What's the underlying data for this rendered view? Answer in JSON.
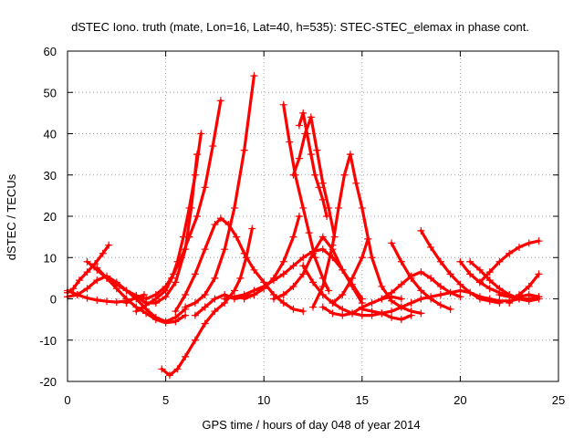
{
  "chart_data": {
    "type": "scatter",
    "title": "dSTEC Iono. truth (mate, Lon=16, Lat=40, h=535): STEC-STEC_elemax in phase cont.",
    "xlabel": "GPS time / hours of day 048 of year 2014",
    "ylabel": "dSTEC  / TECUs",
    "xlim": [
      0,
      25
    ],
    "ylim": [
      -20,
      60
    ],
    "xticks": [
      0,
      5,
      10,
      15,
      20,
      25
    ],
    "yticks": [
      -20,
      -10,
      0,
      10,
      20,
      30,
      40,
      50,
      60
    ],
    "grid": true,
    "marker": "+",
    "color": "#ff0000",
    "series": [
      {
        "x": [
          0.0,
          0.3,
          0.6,
          1.0,
          1.4,
          1.8,
          2.1
        ],
        "y": [
          1.5,
          2.5,
          4.5,
          6.5,
          8.5,
          11.0,
          13.0
        ]
      },
      {
        "x": [
          0.0,
          0.5,
          1.0,
          1.5,
          2.0,
          2.5,
          3.0,
          3.5,
          3.9
        ],
        "y": [
          2.0,
          1.0,
          0.2,
          -0.3,
          -0.6,
          -0.8,
          -0.5,
          0.2,
          1.0
        ]
      },
      {
        "x": [
          1.0,
          1.5,
          2.0,
          2.5,
          3.0,
          3.5,
          4.0
        ],
        "y": [
          9.0,
          7.0,
          5.0,
          3.5,
          2.0,
          0.8,
          0.0
        ]
      },
      {
        "x": [
          0.0,
          0.5,
          1.0,
          1.5,
          2.0,
          2.5,
          3.0,
          3.5,
          4.0,
          4.5,
          5.0,
          5.5,
          6.0
        ],
        "y": [
          0.5,
          1.0,
          2.5,
          4.5,
          5.5,
          4.0,
          2.0,
          0.0,
          -2.5,
          -4.5,
          -5.5,
          -4.5,
          -2.5
        ]
      },
      {
        "x": [
          1.5,
          2.0,
          2.5,
          3.0,
          3.5,
          4.0,
          4.5,
          5.0,
          5.5,
          6.0
        ],
        "y": [
          7.5,
          5.0,
          2.5,
          0.0,
          -2.0,
          -3.5,
          -5.0,
          -5.8,
          -5.5,
          -4.0
        ]
      },
      {
        "x": [
          3.0,
          3.5,
          4.0,
          4.5,
          5.0,
          5.5,
          6.0,
          6.3,
          6.6
        ],
        "y": [
          -1.0,
          0.5,
          -1.0,
          -1.0,
          0.5,
          4.0,
          12.0,
          22.0,
          35.0
        ]
      },
      {
        "x": [
          3.5,
          4.0,
          4.5,
          5.0,
          5.3,
          5.6,
          5.9,
          6.2,
          6.5,
          6.8
        ],
        "y": [
          -3.0,
          -1.5,
          0.0,
          2.0,
          5.0,
          9.0,
          15.0,
          22.0,
          30.0,
          40.0
        ]
      },
      {
        "x": [
          4.0,
          4.5,
          5.0,
          5.4,
          5.8,
          6.2,
          6.6,
          7.0,
          7.4,
          7.8
        ],
        "y": [
          0.0,
          1.0,
          3.0,
          6.0,
          10.0,
          15.0,
          20.0,
          27.0,
          37.0,
          48.0
        ]
      },
      {
        "x": [
          4.8,
          5.2,
          5.6,
          6.0,
          6.5,
          7.0,
          7.5,
          8.0,
          8.5,
          8.8,
          9.1,
          9.4
        ],
        "y": [
          -17.0,
          -18.5,
          -17.0,
          -14.0,
          -10.0,
          -6.0,
          -3.0,
          -1.0,
          2.0,
          5.0,
          10.0,
          17.0
        ]
      },
      {
        "x": [
          5.5,
          6.0,
          6.5,
          7.0,
          7.5,
          7.8,
          8.2,
          8.6,
          9.0,
          9.5,
          10.0,
          10.5,
          11.0,
          11.5,
          12.0
        ],
        "y": [
          -3.0,
          1.0,
          6.0,
          12.0,
          18.0,
          19.5,
          18.0,
          15.0,
          11.0,
          7.0,
          4.0,
          1.0,
          -1.0,
          -2.5,
          -3.0
        ]
      },
      {
        "x": [
          6.0,
          6.5,
          7.0,
          7.5,
          8.0,
          8.5,
          9.0,
          9.5
        ],
        "y": [
          -2.0,
          -1.0,
          1.0,
          5.0,
          12.0,
          22.0,
          36.0,
          54.0
        ]
      },
      {
        "x": [
          6.5,
          7.0,
          7.5,
          8.0,
          8.5,
          9.0,
          9.5
        ],
        "y": [
          -4.0,
          -2.0,
          0.0,
          1.0,
          0.0,
          0.5,
          1.0
        ]
      },
      {
        "x": [
          8.0,
          8.5,
          9.0,
          9.5,
          10.0,
          10.5,
          11.0,
          11.5,
          12.0,
          12.5,
          13.0,
          13.5,
          14.0,
          14.5,
          15.0
        ],
        "y": [
          0.0,
          0.5,
          1.0,
          2.0,
          3.0,
          4.5,
          6.0,
          8.0,
          10.0,
          11.5,
          12.0,
          10.0,
          7.0,
          3.5,
          0.0
        ]
      },
      {
        "x": [
          9.0,
          9.5,
          10.0,
          10.5,
          11.0,
          11.5,
          11.8
        ],
        "y": [
          0.0,
          1.0,
          2.5,
          5.0,
          9.0,
          15.0,
          20.0
        ]
      },
      {
        "x": [
          10.5,
          11.0,
          11.5,
          12.0,
          12.5,
          13.0,
          13.5,
          14.0,
          14.5,
          15.0
        ],
        "y": [
          0.0,
          1.0,
          3.0,
          6.0,
          11.0,
          15.0,
          12.0,
          7.0,
          3.0,
          -1.0
        ]
      },
      {
        "x": [
          11.0,
          11.3,
          11.6,
          12.0,
          12.3,
          12.6,
          13.0,
          13.3
        ],
        "y": [
          47.0,
          38.0,
          30.0,
          22.0,
          16.0,
          10.0,
          5.0,
          2.0
        ]
      },
      {
        "x": [
          11.5,
          11.8,
          12.1,
          12.4,
          12.7,
          13.0,
          13.3,
          13.6
        ],
        "y": [
          30.0,
          34.0,
          40.0,
          44.0,
          36.0,
          28.0,
          22.0,
          15.0
        ]
      },
      {
        "x": [
          11.8,
          12.0,
          12.2,
          12.4,
          12.6,
          12.8,
          13.0,
          13.2
        ],
        "y": [
          42.0,
          45.0,
          40.0,
          35.0,
          30.0,
          27.0,
          24.0,
          20.0
        ]
      },
      {
        "x": [
          12.0,
          12.5,
          13.0,
          13.5,
          14.0,
          14.5,
          15.0,
          15.5,
          16.0,
          16.5,
          17.0,
          17.5,
          18.0
        ],
        "y": [
          8.0,
          4.0,
          1.0,
          -1.0,
          -2.5,
          -3.5,
          -4.0,
          -4.0,
          -3.5,
          -3.0,
          -2.0,
          -1.0,
          0.0
        ]
      },
      {
        "x": [
          12.5,
          13.0,
          13.5,
          13.8,
          14.1,
          14.4,
          14.7,
          15.0,
          15.5,
          16.0,
          16.5,
          17.0,
          17.5,
          18.0
        ],
        "y": [
          -2.0,
          3.0,
          13.0,
          22.0,
          30.0,
          35.0,
          28.0,
          22.0,
          10.0,
          3.0,
          -0.5,
          -2.0,
          -3.0,
          -3.5
        ]
      },
      {
        "x": [
          13.0,
          13.5,
          14.0,
          14.5,
          15.0,
          15.5,
          16.0,
          16.5,
          17.0
        ],
        "y": [
          -2.0,
          -3.5,
          -4.0,
          -3.5,
          -2.0,
          -1.0,
          0.0,
          0.5,
          0.0
        ]
      },
      {
        "x": [
          13.5,
          14.0,
          14.5,
          15.0,
          15.3
        ],
        "y": [
          -1.0,
          1.0,
          5.0,
          10.0,
          14.5
        ]
      },
      {
        "x": [
          15.0,
          15.5,
          16.0,
          16.5,
          17.0,
          17.5
        ],
        "y": [
          -2.5,
          -3.0,
          -3.5,
          -4.5,
          -5.0,
          -4.0
        ]
      },
      {
        "x": [
          16.0,
          16.5,
          17.0,
          17.5,
          18.0,
          18.5,
          19.0,
          19.5,
          20.0
        ],
        "y": [
          0.0,
          1.5,
          3.5,
          5.5,
          6.5,
          5.0,
          3.0,
          1.5,
          0.5
        ]
      },
      {
        "x": [
          16.5,
          17.0,
          17.5,
          18.0,
          18.5,
          19.0,
          19.5
        ],
        "y": [
          13.5,
          9.0,
          5.0,
          2.0,
          0.0,
          -1.5,
          -2.5
        ]
      },
      {
        "x": [
          18.0,
          18.5,
          19.0,
          19.5,
          20.0,
          20.5,
          21.0,
          21.5,
          22.0
        ],
        "y": [
          16.5,
          12.5,
          9.0,
          6.0,
          3.5,
          1.5,
          0.0,
          -0.5,
          -1.0
        ]
      },
      {
        "x": [
          18.0,
          18.5,
          19.0,
          19.5,
          20.0,
          20.5,
          21.0,
          21.5,
          22.0,
          22.5,
          23.0
        ],
        "y": [
          0.0,
          0.5,
          1.0,
          1.5,
          2.0,
          1.5,
          0.5,
          0.0,
          -0.5,
          -0.5,
          0.0
        ]
      },
      {
        "x": [
          20.0,
          20.5,
          21.0,
          21.5,
          22.0,
          22.5,
          23.0,
          23.5,
          24.0
        ],
        "y": [
          9.0,
          6.0,
          4.0,
          2.5,
          1.5,
          0.5,
          0.0,
          0.0,
          0.5
        ]
      },
      {
        "x": [
          20.5,
          21.0,
          21.5,
          22.0,
          22.5,
          23.0,
          23.5,
          24.0
        ],
        "y": [
          9.0,
          7.0,
          4.5,
          2.5,
          1.0,
          0.0,
          -0.5,
          0.0
        ]
      },
      {
        "x": [
          21.0,
          21.5,
          22.0,
          22.5,
          23.0,
          23.5,
          24.0
        ],
        "y": [
          4.0,
          6.5,
          9.0,
          11.0,
          12.5,
          13.5,
          14.0
        ]
      },
      {
        "x": [
          22.0,
          22.5,
          23.0,
          23.5,
          24.0
        ],
        "y": [
          1.0,
          0.5,
          0.5,
          1.0,
          0.5
        ]
      },
      {
        "x": [
          22.5,
          23.0,
          23.5,
          24.0
        ],
        "y": [
          -1.0,
          1.0,
          3.0,
          6.0
        ]
      }
    ]
  }
}
